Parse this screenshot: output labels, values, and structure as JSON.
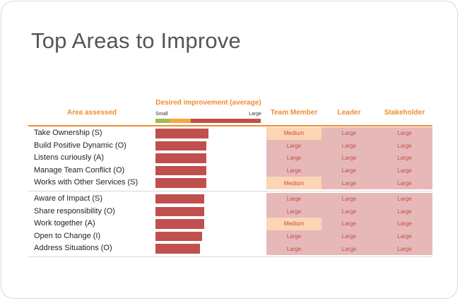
{
  "page": {
    "title": "Top Areas to Improve"
  },
  "table": {
    "headers": {
      "area": "Area assessed",
      "desired": "Desired improvement (average)",
      "scale_small": "Small",
      "scale_large": "Large",
      "team_member": "Team Member",
      "leader": "Leader",
      "stakeholder": "Stakeholder"
    },
    "colors": {
      "accent": "#f08c2e",
      "bar": "#c0504d",
      "large_cell": "#e6b9b8",
      "medium_cell": "#fcd5b4",
      "scale_small": "#9bbb59",
      "scale_medium": "#f5a742"
    },
    "groups": [
      {
        "rows": [
          {
            "area": "Take Ownership (S)",
            "improvement": 0.5,
            "team_member": "Medium",
            "leader": "Large",
            "stakeholder": "Large"
          },
          {
            "area": "Build Positive Dynamic (O)",
            "improvement": 0.48,
            "team_member": "Large",
            "leader": "Large",
            "stakeholder": "Large"
          },
          {
            "area": "Listens curiously (A)",
            "improvement": 0.48,
            "team_member": "Large",
            "leader": "Large",
            "stakeholder": "Large"
          },
          {
            "area": "Manage Team Conflict (O)",
            "improvement": 0.48,
            "team_member": "Large",
            "leader": "Large",
            "stakeholder": "Large"
          },
          {
            "area": "Works with Other Services (S)",
            "improvement": 0.48,
            "team_member": "Medium",
            "leader": "Large",
            "stakeholder": "Large"
          }
        ]
      },
      {
        "rows": [
          {
            "area": "Aware of Impact (S)",
            "improvement": 0.46,
            "team_member": "Large",
            "leader": "Large",
            "stakeholder": "Large"
          },
          {
            "area": "Share responsibility (O)",
            "improvement": 0.46,
            "team_member": "Large",
            "leader": "Large",
            "stakeholder": "Large"
          },
          {
            "area": "Work together (A)",
            "improvement": 0.46,
            "team_member": "Medium",
            "leader": "Large",
            "stakeholder": "Large"
          },
          {
            "area": "Open to Change (I)",
            "improvement": 0.44,
            "team_member": "Large",
            "leader": "Large",
            "stakeholder": "Large"
          },
          {
            "area": "Address Situations (O)",
            "improvement": 0.42,
            "team_member": "Large",
            "leader": "Large",
            "stakeholder": "Large"
          }
        ]
      }
    ]
  }
}
